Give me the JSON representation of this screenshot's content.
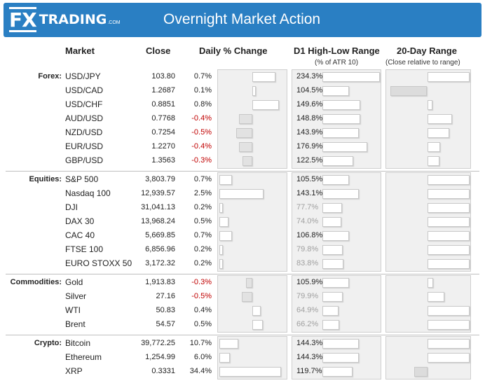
{
  "header": {
    "logo_fx": "FX",
    "logo_trading": "TRADING",
    "logo_com": ".COM",
    "title": "Overnight Market Action"
  },
  "columns": {
    "market": "Market",
    "close": "Close",
    "daily_change": "Daily % Change",
    "range": "D1 High-Low Range",
    "range_sub": "(% of ATR 10)",
    "day20": "20-Day Range",
    "day20_sub": "(Close relative to range)"
  },
  "colors": {
    "banner": "#2a7fc3",
    "negative": "#c00000",
    "dim": "#a0a0a0"
  },
  "groups": [
    {
      "label": "Forex:",
      "rows": [
        {
          "market": "USD/JPY",
          "close": "103.80",
          "change": "0.7%",
          "change_value": 0.7,
          "atr": "234.3%",
          "atr_value": 234.3,
          "atr_dim": false,
          "pos20": 1.0
        },
        {
          "market": "USD/CAD",
          "close": "1.2687",
          "change": "0.1%",
          "change_value": 0.1,
          "atr": "104.5%",
          "atr_value": 104.5,
          "atr_dim": false,
          "pos20": 0.0
        },
        {
          "market": "USD/CHF",
          "close": "0.8851",
          "change": "0.8%",
          "change_value": 0.8,
          "atr": "149.6%",
          "atr_value": 149.6,
          "atr_dim": false,
          "pos20": 0.56
        },
        {
          "market": "AUD/USD",
          "close": "0.7768",
          "change": "-0.4%",
          "change_value": -0.4,
          "atr": "148.8%",
          "atr_value": 148.8,
          "atr_dim": false,
          "pos20": 0.79
        },
        {
          "market": "NZD/USD",
          "close": "0.7254",
          "change": "-0.5%",
          "change_value": -0.5,
          "atr": "143.9%",
          "atr_value": 143.9,
          "atr_dim": false,
          "pos20": 0.76
        },
        {
          "market": "EUR/USD",
          "close": "1.2270",
          "change": "-0.4%",
          "change_value": -0.4,
          "atr": "176.9%",
          "atr_value": 176.9,
          "atr_dim": false,
          "pos20": 0.65
        },
        {
          "market": "GBP/USD",
          "close": "1.3563",
          "change": "-0.3%",
          "change_value": -0.3,
          "atr": "122.5%",
          "atr_value": 122.5,
          "atr_dim": false,
          "pos20": 0.64
        }
      ]
    },
    {
      "label": "Equities:",
      "rows": [
        {
          "market": "S&P 500",
          "close": "3,803.79",
          "change": "0.7%",
          "change_value": 0.7,
          "atr": "105.5%",
          "atr_value": 105.5,
          "atr_dim": false,
          "pos20": 1.0
        },
        {
          "market": "Nasdaq 100",
          "close": "12,939.57",
          "change": "2.5%",
          "change_value": 2.5,
          "atr": "143.1%",
          "atr_value": 143.1,
          "atr_dim": false,
          "pos20": 1.0
        },
        {
          "market": "DJI",
          "close": "31,041.13",
          "change": "0.2%",
          "change_value": 0.2,
          "atr": "77.7%",
          "atr_value": 77.7,
          "atr_dim": true,
          "pos20": 1.0
        },
        {
          "market": "DAX 30",
          "close": "13,968.24",
          "change": "0.5%",
          "change_value": 0.5,
          "atr": "74.0%",
          "atr_value": 74.0,
          "atr_dim": true,
          "pos20": 1.0
        },
        {
          "market": "CAC 40",
          "close": "5,669.85",
          "change": "0.7%",
          "change_value": 0.7,
          "atr": "106.8%",
          "atr_value": 106.8,
          "atr_dim": false,
          "pos20": 1.0
        },
        {
          "market": "FTSE 100",
          "close": "6,856.96",
          "change": "0.2%",
          "change_value": 0.2,
          "atr": "79.8%",
          "atr_value": 79.8,
          "atr_dim": true,
          "pos20": 1.0
        },
        {
          "market": "EURO STOXX 50",
          "close": "3,172.32",
          "change": "0.2%",
          "change_value": 0.2,
          "atr": "83.8%",
          "atr_value": 83.8,
          "atr_dim": true,
          "pos20": 1.0
        }
      ]
    },
    {
      "label": "Commodities:",
      "rows": [
        {
          "market": "Gold",
          "close": "1,913.83",
          "change": "-0.3%",
          "change_value": -0.3,
          "atr": "105.9%",
          "atr_value": 105.9,
          "atr_dim": false,
          "pos20": 0.57
        },
        {
          "market": "Silver",
          "close": "27.16",
          "change": "-0.5%",
          "change_value": -0.5,
          "atr": "79.9%",
          "atr_value": 79.9,
          "atr_dim": true,
          "pos20": 0.7
        },
        {
          "market": "WTI",
          "close": "50.83",
          "change": "0.4%",
          "change_value": 0.4,
          "atr": "64.9%",
          "atr_value": 64.9,
          "atr_dim": true,
          "pos20": 1.0
        },
        {
          "market": "Brent",
          "close": "54.57",
          "change": "0.5%",
          "change_value": 0.5,
          "atr": "66.2%",
          "atr_value": 66.2,
          "atr_dim": true,
          "pos20": 1.0
        }
      ]
    },
    {
      "label": "Crypto:",
      "rows": [
        {
          "market": "Bitcoin",
          "close": "39,772.25",
          "change": "10.7%",
          "change_value": 10.7,
          "atr": "144.3%",
          "atr_value": 144.3,
          "atr_dim": false,
          "pos20": 1.0
        },
        {
          "market": "Ethereum",
          "close": "1,254.99",
          "change": "6.0%",
          "change_value": 6.0,
          "atr": "144.3%",
          "atr_value": 144.3,
          "atr_dim": false,
          "pos20": 1.0
        },
        {
          "market": "XRP",
          "close": "0.3331",
          "change": "34.4%",
          "change_value": 34.4,
          "atr": "119.7%",
          "atr_value": 119.7,
          "atr_dim": false,
          "pos20": 0.0
        }
      ]
    }
  ]
}
